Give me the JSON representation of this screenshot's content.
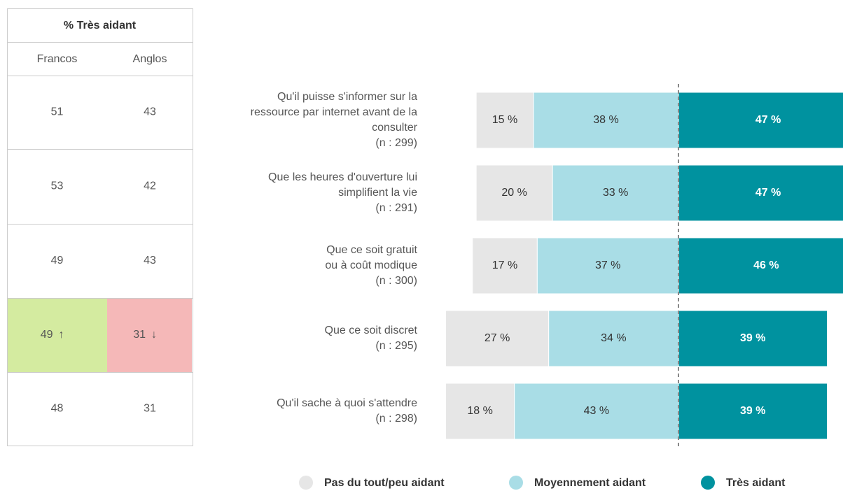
{
  "table": {
    "title": "% Très aidant",
    "columns": [
      "Francos",
      "Anglos"
    ],
    "rows": [
      [
        51,
        43
      ],
      [
        53,
        42
      ],
      [
        49,
        43
      ],
      [
        {
          "value": 49,
          "arrow": "↑",
          "color": "#d4eba0"
        },
        {
          "value": 31,
          "arrow": "↓",
          "color": "#f5b8b8"
        }
      ],
      [
        48,
        31
      ]
    ]
  },
  "chart_data": {
    "type": "diverging_bar",
    "categories": [
      [
        "Qu'il puisse s'informer sur la",
        "ressource par internet avant de la",
        "consulter",
        "(n : 299)"
      ],
      [
        "Que les heures d'ouverture lui",
        "simplifient la vie",
        "(n : 291)"
      ],
      [
        "Que ce soit gratuit",
        "ou à coût modique",
        "(n : 300)"
      ],
      [
        "Que ce soit discret",
        "(n : 295)"
      ],
      [
        "Qu'il sache à quoi s'attendre",
        "(n : 298)"
      ]
    ],
    "series": [
      {
        "name": "Pas du tout/peu aidant",
        "color": "#e6e6e6",
        "values": [
          15,
          20,
          17,
          27,
          18
        ],
        "value_labels": [
          "15 %",
          "20 %",
          "17 %",
          "27 %",
          "18 %"
        ]
      },
      {
        "name": "Moyennement aidant",
        "color": "#a9dde6",
        "values": [
          38,
          33,
          37,
          34,
          43
        ],
        "value_labels": [
          "38 %",
          "33 %",
          "37 %",
          "34 %",
          "43 %"
        ]
      },
      {
        "name": "Très aidant",
        "color": "#00929f",
        "values": [
          47,
          47,
          46,
          39,
          39
        ],
        "value_labels": [
          "47 %",
          "47 %",
          "46 %",
          "39 %",
          "39 %"
        ]
      }
    ]
  }
}
